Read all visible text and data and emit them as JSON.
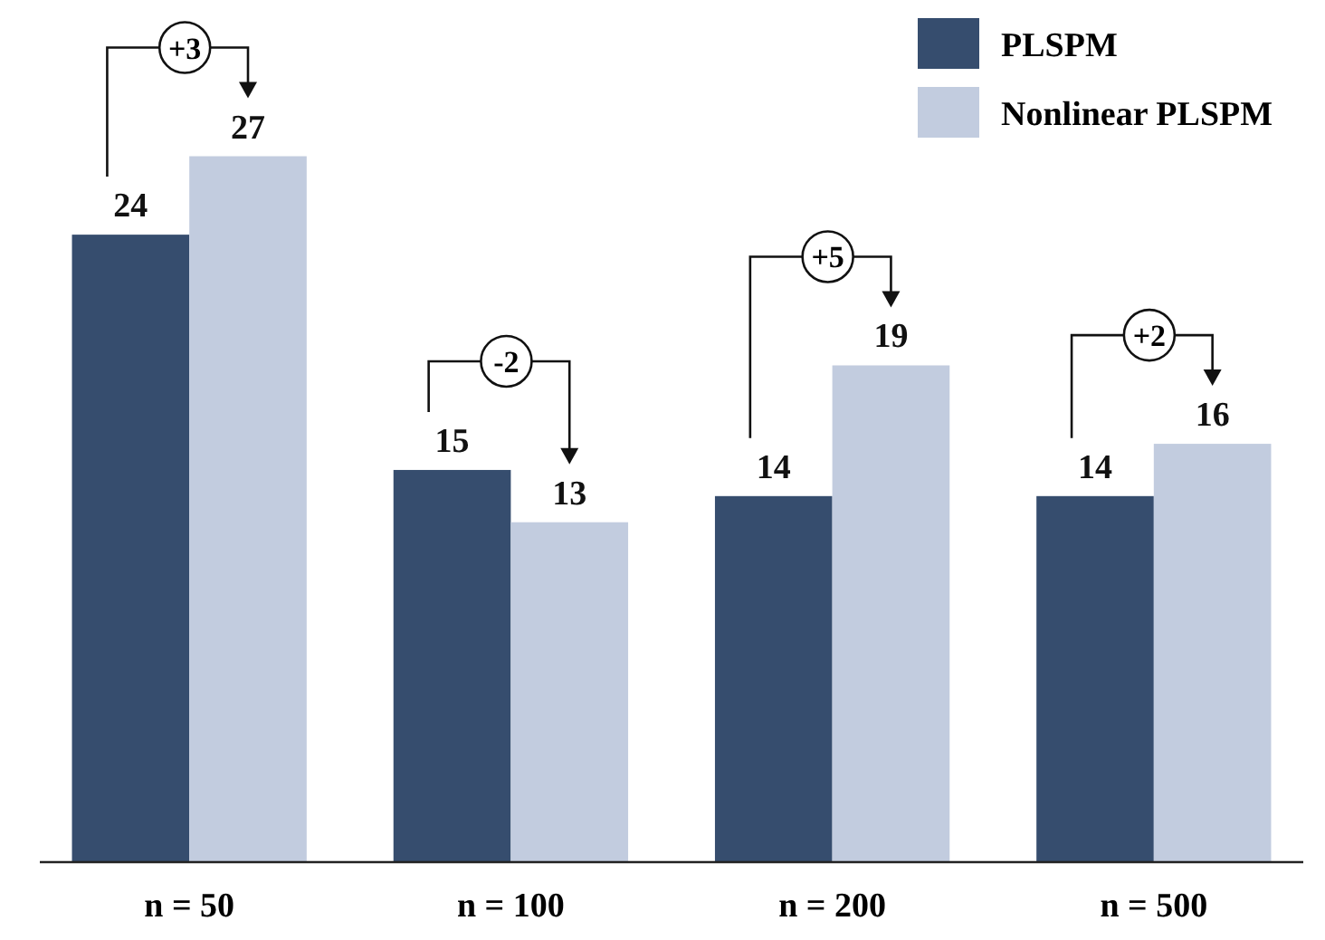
{
  "chart_data": {
    "type": "bar",
    "categories": [
      "n = 50",
      "n = 100",
      "n = 200",
      "n = 500"
    ],
    "series": [
      {
        "name": "PLSPM",
        "color": "#364d6e",
        "values": [
          24,
          15,
          14,
          14
        ]
      },
      {
        "name": "Nonlinear PLSPM",
        "color": "#c2ccdf",
        "values": [
          27,
          13,
          19,
          16
        ]
      }
    ],
    "data_labels": true,
    "legend": "top right",
    "annotations": [
      "+3",
      "-2",
      "+5",
      "+2"
    ]
  }
}
